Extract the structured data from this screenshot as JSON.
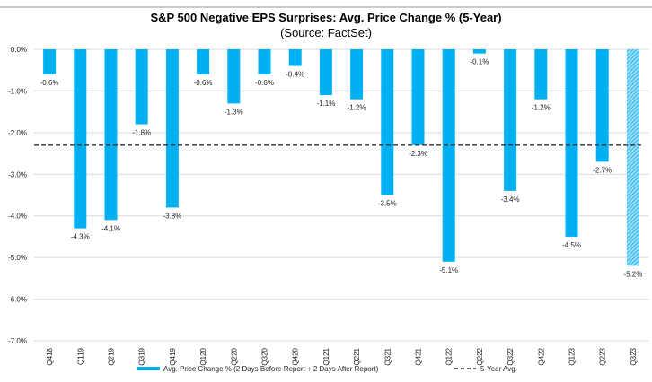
{
  "chart_data": {
    "type": "bar",
    "title": "S&P 500 Negative EPS Surprises: Avg. Price Change % (5-Year)",
    "subtitle": "(Source: FactSet)",
    "categories": [
      "Q418",
      "Q119",
      "Q219",
      "Q319",
      "Q419",
      "Q120",
      "Q220",
      "Q320",
      "Q420",
      "Q121",
      "Q221",
      "Q321",
      "Q421",
      "Q122",
      "Q222",
      "Q322",
      "Q422",
      "Q123",
      "Q223",
      "Q323"
    ],
    "series": [
      {
        "name": "Avg. Price Change % (2 Days Before Report + 2 Days After Report)",
        "values": [
          -0.6,
          -4.3,
          -4.1,
          -1.8,
          -3.8,
          -0.6,
          -1.3,
          -0.6,
          -0.4,
          -1.1,
          -1.2,
          -3.5,
          -2.3,
          -5.1,
          -0.1,
          -3.4,
          -1.2,
          -4.5,
          -2.7,
          -5.2
        ],
        "labels": [
          "-0.6%",
          "-4.3%",
          "-4.1%",
          "-1.8%",
          "-3.8%",
          "-0.6%",
          "-1.3%",
          "-0.6%",
          "-0.4%",
          "-1.1%",
          "-1.2%",
          "-3.5%",
          "-2.3%",
          "-5.1%",
          "-0.1%",
          "-3.4%",
          "-1.2%",
          "-4.5%",
          "-2.7%",
          "-5.2%"
        ],
        "color": "#00b0f0",
        "hatched_categories": [
          "Q323"
        ]
      }
    ],
    "reference_line": {
      "name": "5-Year Avg.",
      "value": -2.3,
      "style": "dashed",
      "color": "#333333"
    },
    "yticks": [
      0,
      -1,
      -2,
      -3,
      -4,
      -5,
      -6,
      -7
    ],
    "ytick_labels": [
      "0.0%",
      "-1.0%",
      "-2.0%",
      "-3.0%",
      "-4.0%",
      "-5.0%",
      "-6.0%",
      "-7.0%"
    ],
    "ylim": [
      -7,
      0
    ],
    "grid": true,
    "legend_placement": "bottom",
    "xlabel": "",
    "ylabel": ""
  }
}
